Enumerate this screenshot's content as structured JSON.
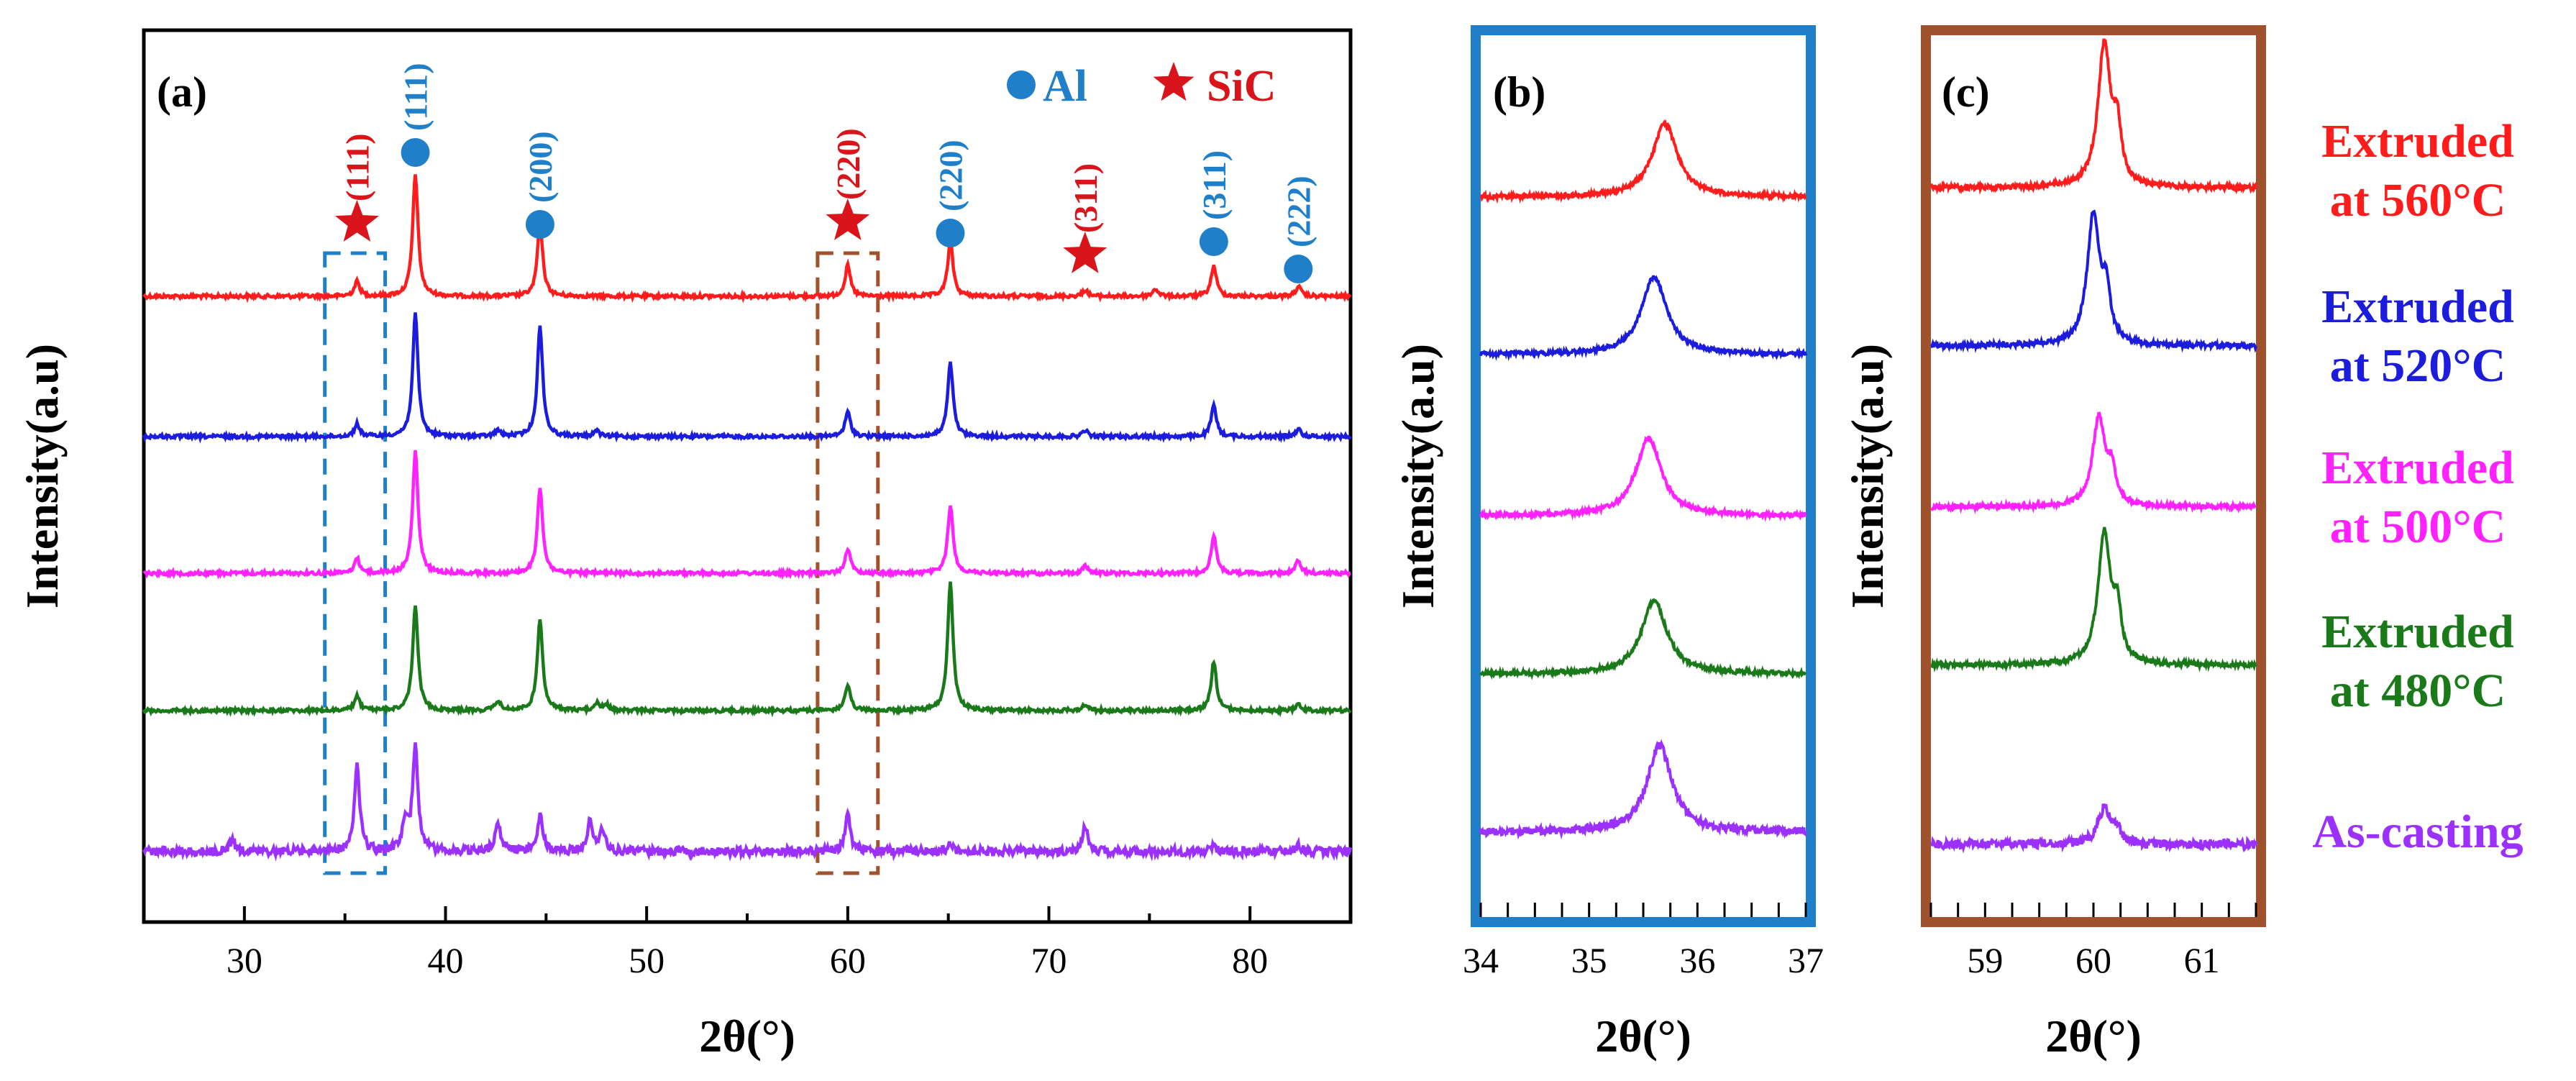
{
  "chart_data": [
    {
      "panel": "(a)",
      "type": "line",
      "xlabel": "2θ(°)",
      "ylabel": "Intensity(a.u)",
      "xlim": [
        25,
        85
      ],
      "xticks": [
        30,
        40,
        50,
        60,
        70,
        80
      ],
      "legend": [
        {
          "name": "Al",
          "marker": "circle",
          "color": "#1f7fc8"
        },
        {
          "name": "SiC",
          "marker": "star",
          "color": "#d9151b"
        }
      ],
      "legend_position": "top-right",
      "peak_labels": [
        {
          "x": 35.6,
          "text": "(111)",
          "phase": "SiC"
        },
        {
          "x": 38.5,
          "text": "(111)",
          "phase": "Al"
        },
        {
          "x": 44.7,
          "text": "(200)",
          "phase": "Al"
        },
        {
          "x": 60.0,
          "text": "(220)",
          "phase": "SiC"
        },
        {
          "x": 65.1,
          "text": "(220)",
          "phase": "Al"
        },
        {
          "x": 71.8,
          "text": "(311)",
          "phase": "SiC"
        },
        {
          "x": 78.2,
          "text": "(311)",
          "phase": "Al"
        },
        {
          "x": 82.4,
          "text": "(222)",
          "phase": "Al"
        }
      ],
      "highlight_ranges": [
        {
          "range": [
            34,
            37
          ],
          "color": "#1f7fc8"
        },
        {
          "range": [
            58.5,
            61.5
          ],
          "color": "#a0522d"
        }
      ],
      "series": [
        {
          "name": "Extruded at 560°C",
          "color": "#ff1c1c",
          "offset": 4,
          "peaks": [
            [
              35.6,
              0.12
            ],
            [
              38.5,
              1.0
            ],
            [
              44.7,
              0.6
            ],
            [
              60.0,
              0.25
            ],
            [
              65.1,
              0.45
            ],
            [
              71.8,
              0.05
            ],
            [
              75.3,
              0.06
            ],
            [
              78.2,
              0.25
            ],
            [
              82.4,
              0.08
            ]
          ]
        },
        {
          "name": "Extruded at 520°C",
          "color": "#1c1cdc",
          "offset": 3,
          "peaks": [
            [
              35.6,
              0.1
            ],
            [
              38.5,
              1.0
            ],
            [
              42.6,
              0.05
            ],
            [
              44.7,
              0.9
            ],
            [
              47.5,
              0.05
            ],
            [
              60.0,
              0.2
            ],
            [
              65.1,
              0.6
            ],
            [
              71.8,
              0.05
            ],
            [
              78.2,
              0.25
            ],
            [
              82.4,
              0.06
            ]
          ]
        },
        {
          "name": "Extruded at 500°C",
          "color": "#ff22ff",
          "offset": 2,
          "peaks": [
            [
              35.6,
              0.12
            ],
            [
              38.5,
              1.0
            ],
            [
              44.7,
              0.7
            ],
            [
              60.0,
              0.2
            ],
            [
              65.1,
              0.55
            ],
            [
              71.8,
              0.06
            ],
            [
              78.2,
              0.3
            ],
            [
              82.4,
              0.1
            ]
          ]
        },
        {
          "name": "Extruded at 480°C",
          "color": "#1a7a1a",
          "offset": 1,
          "peaks": [
            [
              35.6,
              0.12
            ],
            [
              38.5,
              0.85
            ],
            [
              42.6,
              0.08
            ],
            [
              44.7,
              0.75
            ],
            [
              47.5,
              0.06
            ],
            [
              48.0,
              0.05
            ],
            [
              60.0,
              0.2
            ],
            [
              65.1,
              1.05
            ],
            [
              71.8,
              0.05
            ],
            [
              78.2,
              0.4
            ],
            [
              82.4,
              0.05
            ]
          ]
        },
        {
          "name": "As-casting",
          "color": "#9b30ff",
          "offset": 0,
          "peaks": [
            [
              29.4,
              0.1
            ],
            [
              35.6,
              0.7
            ],
            [
              38.0,
              0.25
            ],
            [
              38.5,
              0.85
            ],
            [
              42.6,
              0.25
            ],
            [
              44.7,
              0.3
            ],
            [
              47.2,
              0.25
            ],
            [
              47.8,
              0.18
            ],
            [
              60.0,
              0.3
            ],
            [
              65.1,
              0.07
            ],
            [
              71.8,
              0.22
            ],
            [
              78.2,
              0.05
            ],
            [
              82.4,
              0.05
            ]
          ]
        }
      ]
    },
    {
      "panel": "(b)",
      "type": "line",
      "xlabel": "2θ(°)",
      "ylabel": "Intensity(a.u)",
      "xlim": [
        34,
        37
      ],
      "xticks": [
        34,
        35,
        36,
        37
      ],
      "frame_color": "#1f7fc8",
      "series": [
        {
          "name": "Extruded at 560°C",
          "color": "#ff1c1c",
          "offset": 4,
          "center": 35.7,
          "height": 0.85
        },
        {
          "name": "Extruded at 520°C",
          "color": "#1c1cdc",
          "offset": 3,
          "center": 35.6,
          "height": 0.9
        },
        {
          "name": "Extruded at 500°C",
          "color": "#ff22ff",
          "offset": 2,
          "center": 35.55,
          "height": 0.9
        },
        {
          "name": "Extruded at 480°C",
          "color": "#1a7a1a",
          "offset": 1,
          "center": 35.6,
          "height": 0.85
        },
        {
          "name": "As-casting",
          "color": "#9b30ff",
          "offset": 0,
          "center": 35.65,
          "height": 1.0
        }
      ]
    },
    {
      "panel": "(c)",
      "type": "line",
      "xlabel": "2θ(°)",
      "ylabel": "Intensity(a.u)",
      "xlim": [
        58.5,
        61.5
      ],
      "xticks": [
        59,
        60,
        61
      ],
      "frame_color": "#a0522d",
      "series": [
        {
          "name": "Extruded at 560°C",
          "color": "#ff1c1c",
          "offset": 4,
          "center": 60.1,
          "height": 1.2
        },
        {
          "name": "Extruded at 520°C",
          "color": "#1c1cdc",
          "offset": 3,
          "center": 60.0,
          "height": 1.1
        },
        {
          "name": "Extruded at 500°C",
          "color": "#ff22ff",
          "offset": 2,
          "center": 60.05,
          "height": 0.75
        },
        {
          "name": "Extruded at 480°C",
          "color": "#1a7a1a",
          "offset": 1,
          "center": 60.1,
          "height": 1.1
        },
        {
          "name": "As-casting",
          "color": "#9b30ff",
          "offset": 0,
          "center": 60.1,
          "height": 0.3
        }
      ]
    }
  ],
  "series_labels": [
    {
      "line1": "Extruded",
      "line2": "at 560°C",
      "color": "#ff1c1c"
    },
    {
      "line1": "Extruded",
      "line2": "at 520°C",
      "color": "#1c1cdc"
    },
    {
      "line1": "Extruded",
      "line2": "at 500°C",
      "color": "#ff22ff"
    },
    {
      "line1": "Extruded",
      "line2": "at 480°C",
      "color": "#1a7a1a"
    },
    {
      "line1": "As-casting",
      "line2": "",
      "color": "#9b30ff"
    }
  ]
}
